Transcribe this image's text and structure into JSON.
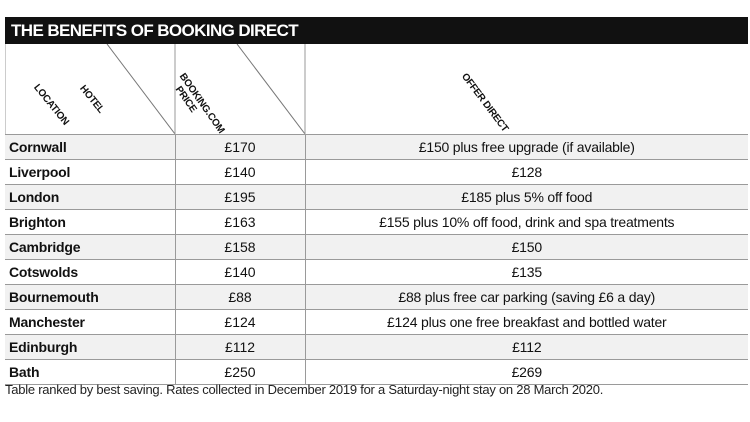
{
  "table": {
    "title": "THE BENEFITS OF BOOKING DIRECT",
    "headers": {
      "hotel_location_line1": "HOTEL",
      "hotel_location_line2": "LOCATION",
      "booking_line1": "BOOKING.COM",
      "booking_line2": "PRICE",
      "offer": "OFFER DIRECT"
    },
    "rows": [
      {
        "location": "Cornwall",
        "price": "£170",
        "offer": "£150 plus free upgrade (if available)"
      },
      {
        "location": "Liverpool",
        "price": "£140",
        "offer": "£128"
      },
      {
        "location": "London",
        "price": "£195",
        "offer": "£185 plus 5% off food"
      },
      {
        "location": "Brighton",
        "price": "£163",
        "offer": "£155 plus 10% off food, drink and spa treatments"
      },
      {
        "location": "Cambridge",
        "price": "£158",
        "offer": "£150"
      },
      {
        "location": "Cotswolds",
        "price": "£140",
        "offer": "£135"
      },
      {
        "location": "Bournemouth",
        "price": "£88",
        "offer": "£88 plus free car parking (saving £6 a day)"
      },
      {
        "location": "Manchester",
        "price": "£124",
        "offer": "£124 plus one free breakfast and bottled water"
      },
      {
        "location": "Edinburgh",
        "price": "£112",
        "offer": "£112"
      },
      {
        "location": "Bath",
        "price": "£250",
        "offer": "£269"
      }
    ]
  },
  "footnote": "Table ranked by best saving. Rates collected in December 2019 for a Saturday-night stay on 28 March 2020."
}
